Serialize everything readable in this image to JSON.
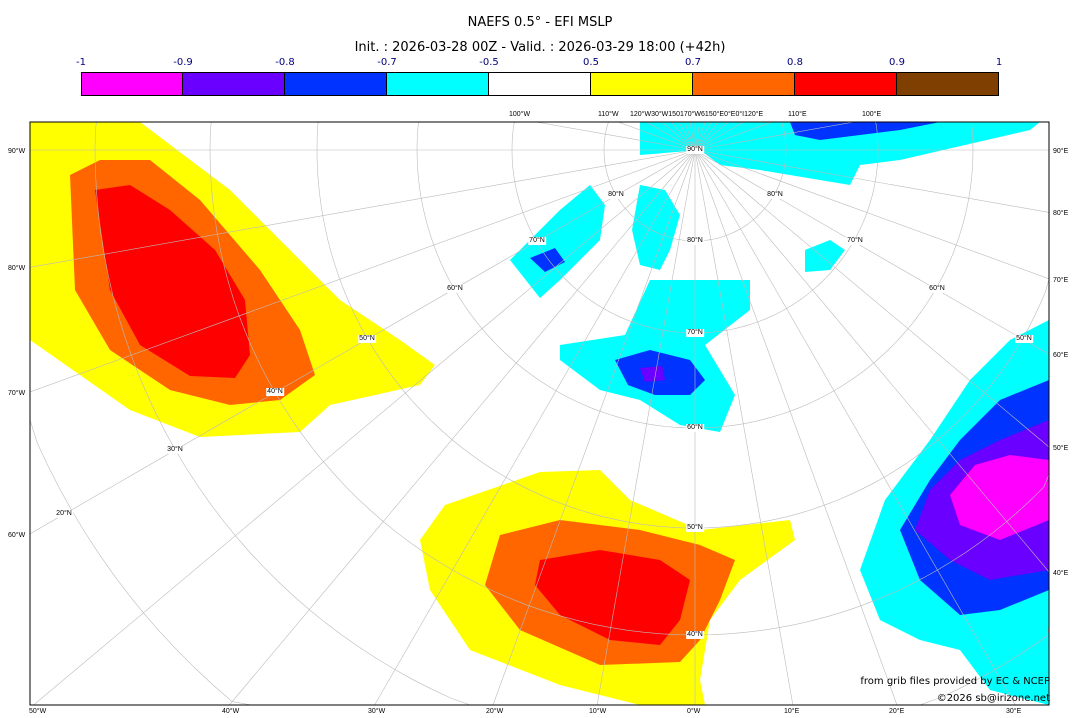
{
  "title": "NAEFS 0.5° - EFI MSLP",
  "subtitle": "Init. : 2026-03-28 00Z - Valid. : 2026-03-29 18:00 (+42h)",
  "colorbar": {
    "ticks": [
      "-1",
      "-0.9",
      "-0.8",
      "-0.7",
      "-0.5",
      "0.5",
      "0.7",
      "0.8",
      "0.9",
      "1"
    ],
    "colors": [
      "#ff00ff",
      "#6a00ff",
      "#0033ff",
      "#00ffff",
      "#ffffff",
      "#ffff00",
      "#ff6600",
      "#ff0000",
      "#7f3f00"
    ]
  },
  "map": {
    "left_labels": [
      "90°W",
      "80°W",
      "70°W",
      "60°W"
    ],
    "right_labels": [
      "90°E",
      "80°E",
      "70°E",
      "60°E",
      "50°E",
      "40°E"
    ],
    "bottom_labels": [
      "50°W",
      "40°W",
      "30°W",
      "20°W",
      "10°W",
      "0°W",
      "10°E",
      "20°E",
      "30°E"
    ],
    "top_labels": [
      "100°W",
      "110°W",
      "120°W30°W150170°W6150°E0°E0°I120°E",
      "110°E",
      "100°E"
    ],
    "lat_labels": [
      "90°N",
      "80°N",
      "70°N",
      "60°N",
      "50°N",
      "40°N",
      "30°N",
      "20°N",
      "80°N",
      "70°N",
      "60°N",
      "50°N",
      "40°N",
      "80°N",
      "70°N",
      "60°N",
      "50°N"
    ]
  },
  "credits": {
    "source": "from grib files provided by EC & NCEP",
    "copyright": "©2026 sb@irizone.net"
  }
}
